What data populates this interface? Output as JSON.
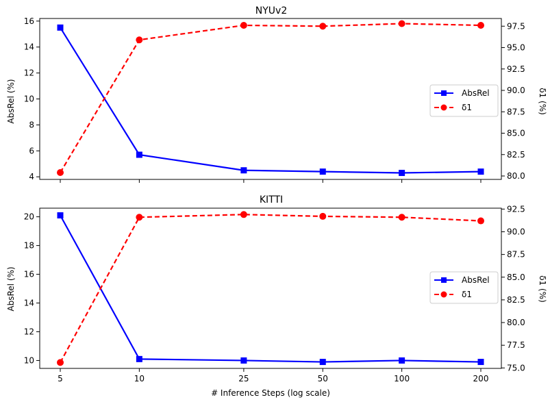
{
  "chart_data": [
    {
      "type": "line",
      "title": "NYUv2",
      "x": [
        5,
        10,
        25,
        50,
        100,
        200
      ],
      "x_tick_labels": [
        "5",
        "10",
        "25",
        "50",
        "100",
        "200"
      ],
      "xscale": "log",
      "xlabel": "",
      "ylabel_left": "AbsRel (%)",
      "ylabel_right": "δ1 (%)",
      "ylim_left": [
        3.8,
        16.2
      ],
      "ylim_right": [
        79.6,
        98.4
      ],
      "yticks_left": [
        "4",
        "6",
        "8",
        "10",
        "12",
        "14",
        "16"
      ],
      "yticks_right": [
        "80.0",
        "82.5",
        "85.0",
        "87.5",
        "90.0",
        "92.5",
        "95.0",
        "97.5"
      ],
      "legend_position": "center-right",
      "series": [
        {
          "name": "AbsRel",
          "axis": "left",
          "color": "#0000ff",
          "marker": "square",
          "linestyle": "solid",
          "values": [
            15.5,
            5.7,
            4.5,
            4.4,
            4.3,
            4.4
          ]
        },
        {
          "name": "δ1",
          "axis": "right",
          "color": "#ff0000",
          "marker": "circle",
          "linestyle": "dashed",
          "values": [
            80.4,
            95.9,
            97.6,
            97.5,
            97.8,
            97.6
          ]
        }
      ]
    },
    {
      "type": "line",
      "title": "KITTI",
      "x": [
        5,
        10,
        25,
        50,
        100,
        200
      ],
      "x_tick_labels": [
        "5",
        "10",
        "25",
        "50",
        "100",
        "200"
      ],
      "xscale": "log",
      "xlabel": "# Inference Steps (log scale)",
      "ylabel_left": "AbsRel (%)",
      "ylabel_right": "δ1 (%)",
      "ylim_left": [
        9.45,
        20.6
      ],
      "ylim_right": [
        74.95,
        92.6
      ],
      "yticks_left": [
        "10",
        "12",
        "14",
        "16",
        "18",
        "20"
      ],
      "yticks_right": [
        "75.0",
        "77.5",
        "80.0",
        "82.5",
        "85.0",
        "87.5",
        "90.0",
        "92.5"
      ],
      "legend_position": "center-right",
      "series": [
        {
          "name": "AbsRel",
          "axis": "left",
          "color": "#0000ff",
          "marker": "square",
          "linestyle": "solid",
          "values": [
            20.1,
            10.1,
            10.0,
            9.9,
            10.0,
            9.9
          ]
        },
        {
          "name": "δ1",
          "axis": "right",
          "color": "#ff0000",
          "marker": "circle",
          "linestyle": "dashed",
          "values": [
            75.6,
            91.6,
            91.9,
            91.7,
            91.6,
            91.2
          ]
        }
      ]
    }
  ]
}
